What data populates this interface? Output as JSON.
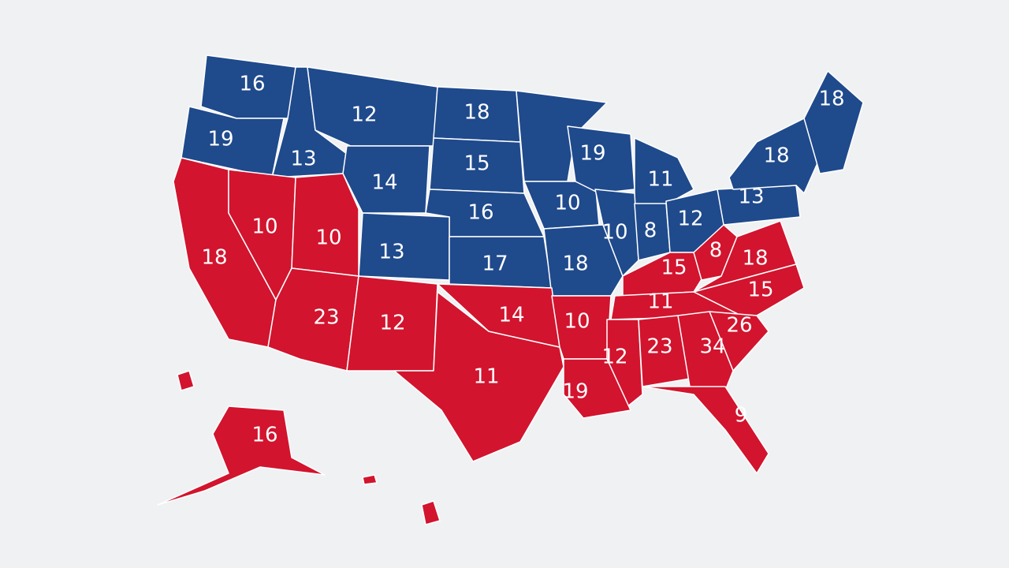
{
  "regions": [
    {
      "label": "16"
    },
    {
      "label": "19"
    },
    {
      "label": "13"
    },
    {
      "label": "12"
    },
    {
      "label": "14"
    },
    {
      "label": "18"
    },
    {
      "label": "15"
    },
    {
      "label": "16"
    },
    {
      "label": "13"
    },
    {
      "label": "17"
    },
    {
      "label": "10"
    },
    {
      "label": "18"
    },
    {
      "label": "19"
    },
    {
      "label": "11"
    },
    {
      "label": "10"
    },
    {
      "label": "8"
    },
    {
      "label": "12"
    },
    {
      "label": "13"
    },
    {
      "label": "18"
    },
    {
      "label": "18"
    },
    {
      "label": "18"
    },
    {
      "label": "10"
    },
    {
      "label": "10"
    },
    {
      "label": "23"
    },
    {
      "label": "12"
    },
    {
      "label": "11"
    },
    {
      "label": "14"
    },
    {
      "label": "10"
    },
    {
      "label": "15"
    },
    {
      "label": "8"
    },
    {
      "label": "18"
    },
    {
      "label": "15"
    },
    {
      "label": "11"
    },
    {
      "label": "26"
    },
    {
      "label": "12"
    },
    {
      "label": "23"
    },
    {
      "label": "34"
    },
    {
      "label": "19"
    },
    {
      "label": "9"
    },
    {
      "label": "16"
    }
  ]
}
